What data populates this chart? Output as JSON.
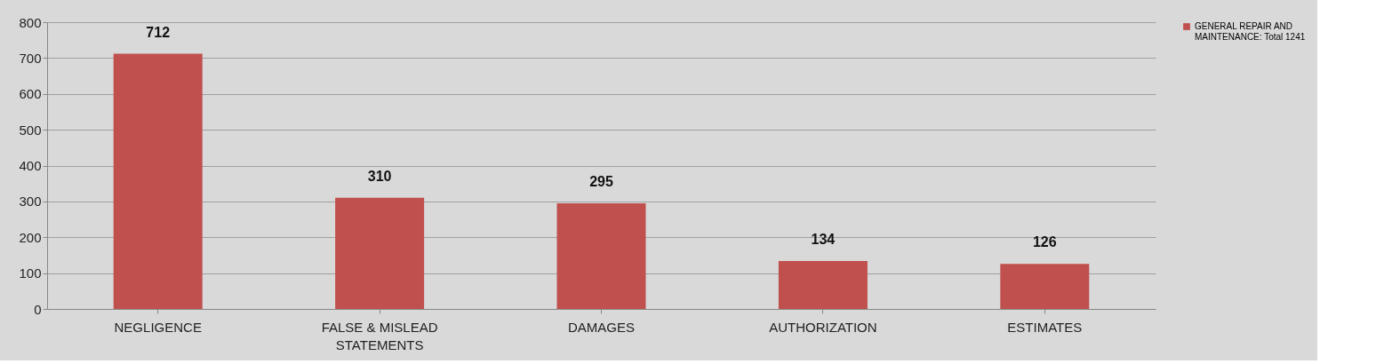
{
  "chart_data": {
    "type": "bar",
    "categories": [
      "NEGLIGENCE",
      "FALSE & MISLEAD STATEMENTS",
      "DAMAGES",
      "AUTHORIZATION",
      "ESTIMATES"
    ],
    "series": [
      {
        "name": "GENERAL REPAIR AND MAINTENANCE: Total  1241",
        "color": "#c0504d",
        "values": [
          712,
          310,
          295,
          134,
          126
        ]
      }
    ],
    "ylim": [
      0,
      800
    ],
    "yticks": [
      0,
      100,
      200,
      300,
      400,
      500,
      600,
      700,
      800
    ],
    "grid": "y",
    "legend": "right",
    "data_labels": true
  }
}
